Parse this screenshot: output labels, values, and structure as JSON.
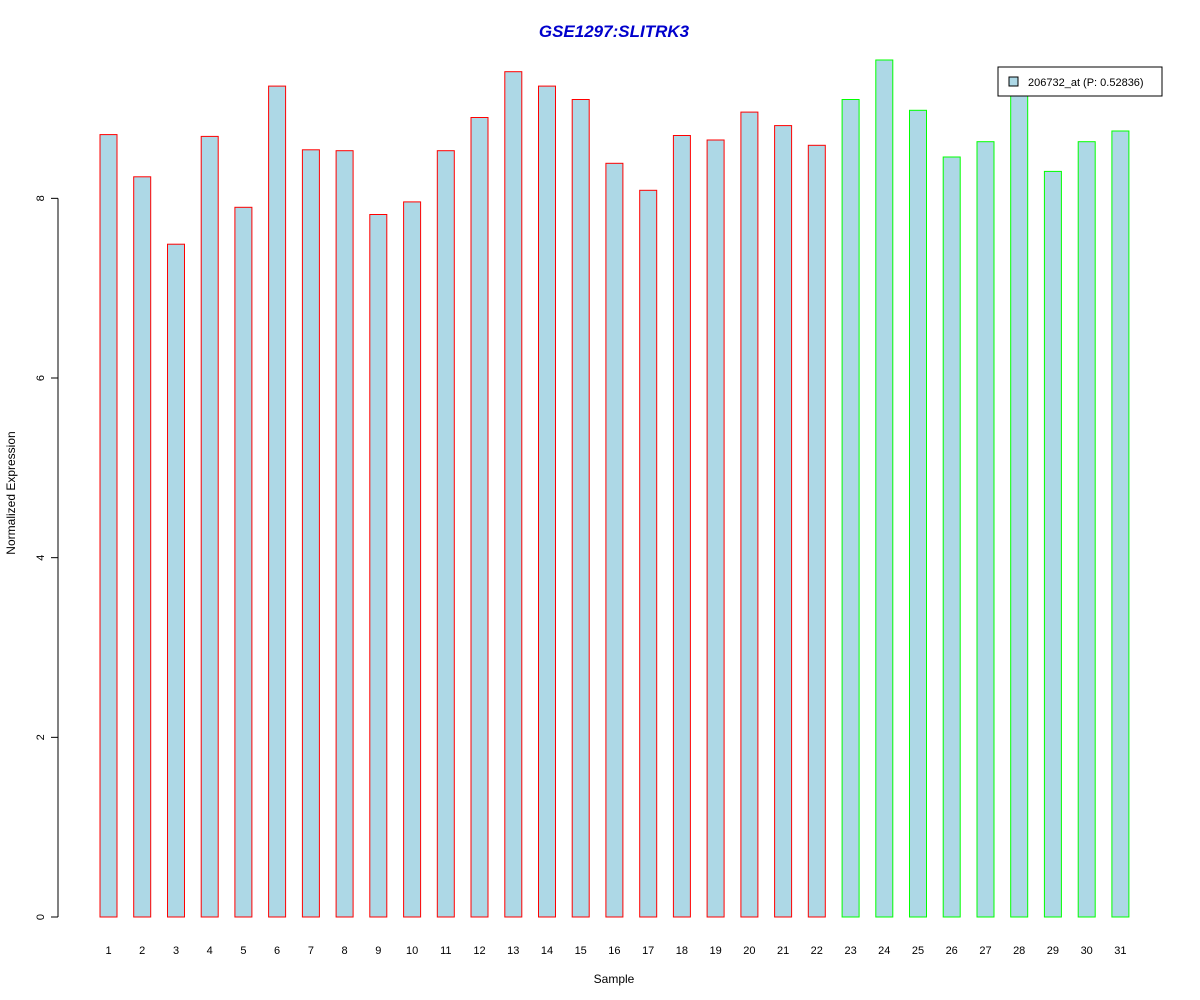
{
  "chart_data": {
    "type": "bar",
    "title": "GSE1297:SLITRK3",
    "xlabel": "Sample",
    "ylabel": "Normalized Expression",
    "categories": [
      "1",
      "2",
      "3",
      "4",
      "5",
      "6",
      "7",
      "8",
      "9",
      "10",
      "11",
      "12",
      "13",
      "14",
      "15",
      "16",
      "17",
      "18",
      "19",
      "20",
      "21",
      "22",
      "23",
      "24",
      "25",
      "26",
      "27",
      "28",
      "29",
      "30",
      "31"
    ],
    "series": [
      {
        "name": "206732_at (P: 0.52836)",
        "values": [
          8.71,
          8.24,
          7.49,
          8.69,
          7.9,
          9.25,
          8.54,
          8.53,
          7.82,
          7.96,
          8.53,
          8.9,
          9.41,
          9.25,
          9.1,
          8.39,
          8.09,
          8.7,
          8.65,
          8.96,
          8.81,
          8.59,
          9.1,
          9.54,
          8.98,
          8.46,
          8.63,
          9.19,
          8.3,
          8.63,
          8.75
        ]
      }
    ],
    "bar_fill": "#add8e6",
    "group_colors": [
      "#ff0000",
      "#00ff00"
    ],
    "group_of_bar": [
      0,
      0,
      0,
      0,
      0,
      0,
      0,
      0,
      0,
      0,
      0,
      0,
      0,
      0,
      0,
      0,
      0,
      0,
      0,
      0,
      0,
      0,
      1,
      1,
      1,
      1,
      1,
      1,
      1,
      1,
      1
    ],
    "title_color": "#0000cc",
    "yticks": [
      0,
      2,
      4,
      6,
      8
    ],
    "ylim": [
      0,
      9.54
    ],
    "legend": {
      "label": "206732_at (P: 0.52836)",
      "placement": "top-right"
    },
    "grid": false
  }
}
